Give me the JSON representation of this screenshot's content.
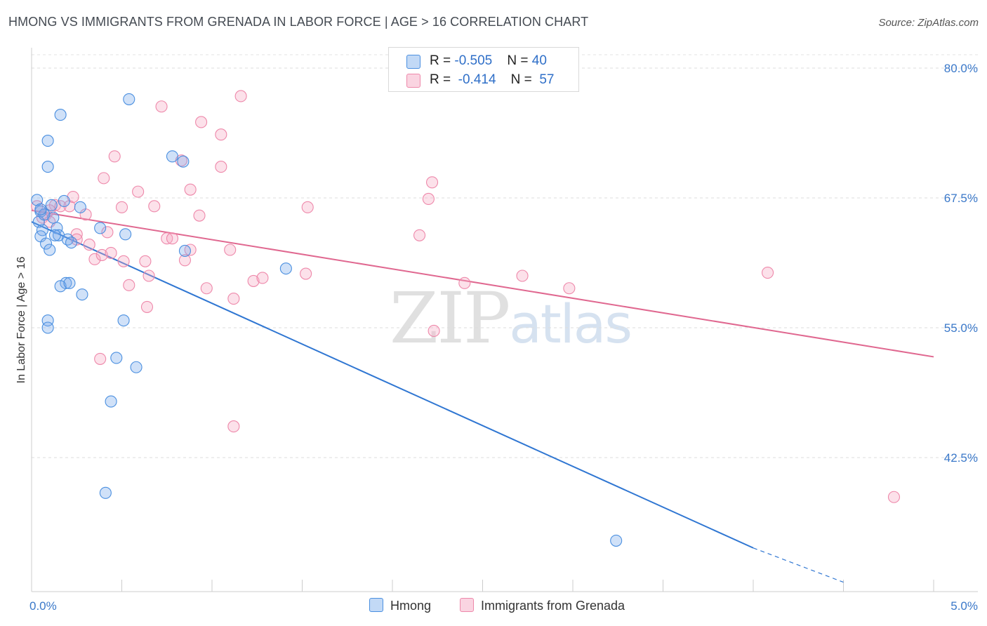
{
  "header": {
    "title": "HMONG VS IMMIGRANTS FROM GRENADA IN LABOR FORCE | AGE > 16 CORRELATION CHART",
    "source": "Source: ZipAtlas.com"
  },
  "watermark": {
    "zip": "ZIP",
    "atlas": "atlas"
  },
  "legend": {
    "rows": [
      {
        "r_label": "R = ",
        "r_value": "-0.505",
        "n_label": "N = ",
        "n_value": "40"
      },
      {
        "r_label": "R = ",
        "r_value": "-0.414",
        "n_label": "N = ",
        "n_value": "57"
      }
    ]
  },
  "chart_data": {
    "type": "scatter",
    "title": "HMONG VS IMMIGRANTS FROM GRENADA IN LABOR FORCE | AGE > 16 CORRELATION CHART",
    "xlabel": "",
    "ylabel": "In Labor Force | Age > 16",
    "xlim": [
      0,
      5.25
    ],
    "ylim": [
      30.5,
      82
    ],
    "x_tick_labels": [
      "0.0%",
      "5.0%"
    ],
    "x_tick_values": [
      0,
      5
    ],
    "y_tick_labels": [
      "80.0%",
      "67.5%",
      "55.0%",
      "42.5%"
    ],
    "y_tick_values": [
      80,
      67.5,
      55,
      42.5
    ],
    "grid": true,
    "colors": {
      "hmong": "#4a8fe0",
      "hmong_fill": "rgba(120,170,235,0.35)",
      "grenada": "#ee88aa",
      "grenada_fill": "rgba(245,170,195,0.35)",
      "hmong_line": "#2f76d2",
      "grenada_line": "#e06890",
      "tick_label": "#3a78c9"
    },
    "series": [
      {
        "name": "Hmong",
        "r": -0.505,
        "n": 40,
        "points": [
          [
            0.03,
            67.3
          ],
          [
            0.05,
            66.2
          ],
          [
            0.04,
            65.2
          ],
          [
            0.06,
            64.4
          ],
          [
            0.05,
            63.8
          ],
          [
            0.08,
            63.1
          ],
          [
            0.1,
            62.5
          ],
          [
            0.12,
            65.6
          ],
          [
            0.11,
            66.8
          ],
          [
            0.14,
            64.6
          ],
          [
            0.15,
            63.9
          ],
          [
            0.09,
            70.5
          ],
          [
            0.09,
            73.0
          ],
          [
            0.16,
            75.5
          ],
          [
            0.18,
            67.2
          ],
          [
            0.2,
            63.5
          ],
          [
            0.22,
            63.2
          ],
          [
            0.27,
            66.6
          ],
          [
            0.38,
            64.6
          ],
          [
            0.52,
            64.0
          ],
          [
            0.54,
            77.0
          ],
          [
            0.78,
            71.5
          ],
          [
            0.84,
            71.0
          ],
          [
            0.85,
            62.4
          ],
          [
            1.41,
            60.7
          ],
          [
            0.19,
            59.3
          ],
          [
            0.16,
            59.0
          ],
          [
            0.21,
            59.3
          ],
          [
            0.28,
            58.2
          ],
          [
            0.09,
            55.7
          ],
          [
            0.09,
            55.0
          ],
          [
            0.51,
            55.7
          ],
          [
            0.47,
            52.1
          ],
          [
            0.58,
            51.2
          ],
          [
            0.44,
            47.9
          ],
          [
            0.41,
            39.1
          ],
          [
            3.24,
            34.5
          ],
          [
            0.07,
            65.9
          ],
          [
            0.05,
            66.4
          ],
          [
            0.13,
            63.9
          ]
        ]
      },
      {
        "name": "Immigrants from Grenada",
        "r": -0.414,
        "n": 57,
        "points": [
          [
            0.03,
            66.7
          ],
          [
            0.06,
            65.6
          ],
          [
            0.08,
            65.9
          ],
          [
            0.1,
            65.2
          ],
          [
            0.13,
            66.8
          ],
          [
            0.16,
            66.7
          ],
          [
            0.21,
            66.7
          ],
          [
            0.23,
            67.6
          ],
          [
            0.25,
            64.0
          ],
          [
            0.3,
            65.9
          ],
          [
            0.25,
            63.5
          ],
          [
            0.32,
            63.0
          ],
          [
            0.35,
            61.6
          ],
          [
            0.39,
            62.0
          ],
          [
            0.4,
            69.4
          ],
          [
            0.42,
            64.2
          ],
          [
            0.44,
            62.2
          ],
          [
            0.46,
            71.5
          ],
          [
            0.5,
            66.6
          ],
          [
            0.51,
            61.4
          ],
          [
            0.54,
            59.1
          ],
          [
            0.59,
            68.1
          ],
          [
            0.63,
            61.4
          ],
          [
            0.65,
            60.0
          ],
          [
            0.68,
            66.7
          ],
          [
            0.72,
            76.3
          ],
          [
            0.75,
            63.6
          ],
          [
            0.78,
            63.6
          ],
          [
            0.83,
            71.1
          ],
          [
            0.85,
            61.5
          ],
          [
            0.88,
            68.3
          ],
          [
            0.88,
            62.5
          ],
          [
            0.93,
            65.8
          ],
          [
            0.94,
            74.8
          ],
          [
            0.97,
            58.8
          ],
          [
            1.05,
            73.6
          ],
          [
            1.05,
            70.5
          ],
          [
            1.1,
            62.5
          ],
          [
            1.12,
            57.8
          ],
          [
            1.16,
            77.3
          ],
          [
            1.23,
            59.5
          ],
          [
            1.28,
            59.8
          ],
          [
            1.52,
            60.2
          ],
          [
            1.53,
            66.6
          ],
          [
            2.15,
            63.9
          ],
          [
            2.2,
            67.4
          ],
          [
            2.22,
            69.0
          ],
          [
            2.23,
            54.7
          ],
          [
            2.4,
            59.3
          ],
          [
            2.72,
            60.0
          ],
          [
            2.98,
            58.8
          ],
          [
            4.08,
            60.3
          ],
          [
            0.64,
            57.0
          ],
          [
            0.38,
            52.0
          ],
          [
            1.12,
            45.5
          ],
          [
            4.78,
            38.7
          ],
          [
            0.1,
            66.3
          ]
        ]
      }
    ],
    "trendlines": [
      {
        "name": "Hmong",
        "x_start": 0.0,
        "y_start": 65.2,
        "x_solid_end": 4.0,
        "y_solid_end": 33.8,
        "x_dash_end": 4.5,
        "y_dash_end": 30.5
      },
      {
        "name": "Immigrants from Grenada",
        "x_start": 0.0,
        "y_start": 66.3,
        "x_end": 5.0,
        "y_end": 52.2
      }
    ]
  }
}
